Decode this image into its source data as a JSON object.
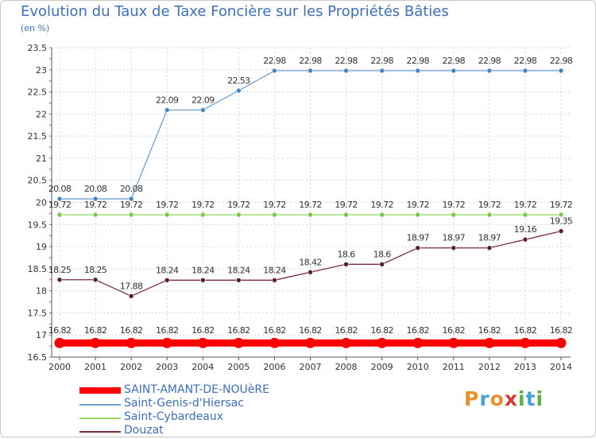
{
  "header": {
    "title": "Evolution du Taux de Taxe Foncière sur les Propriétés Bâties",
    "unit": "(en %)"
  },
  "logo": {
    "chars": [
      "P",
      "r",
      "o",
      "x",
      "i",
      "t",
      "i"
    ],
    "colors": [
      "#e8912a",
      "#4aa0d8",
      "#e8912a",
      "#d63b2f",
      "#5db041",
      "#4aa0d8",
      "#5db041"
    ]
  },
  "chart_data": {
    "type": "line",
    "title": "Evolution du Taux de Taxe Foncière sur les Propriétés Bâties",
    "ylabel": "(en %)",
    "x": [
      "2000",
      "2001",
      "2002",
      "2003",
      "2004",
      "2005",
      "2006",
      "2007",
      "2008",
      "2009",
      "2010",
      "2011",
      "2012",
      "2013",
      "2014"
    ],
    "ylim": [
      16.5,
      23.5
    ],
    "yticks": [
      "16.5",
      "17",
      "17.5",
      "18",
      "18.5",
      "19",
      "19.5",
      "20",
      "20.5",
      "21",
      "21.5",
      "22",
      "22.5",
      "23",
      "23.5"
    ],
    "grid": true,
    "legend_position": "bottom-left",
    "series": [
      {
        "name": "SAINT-AMANT-DE-NOUèRE",
        "color": "#ff0000",
        "marker_color": "#ff0000",
        "thick": true,
        "values": [
          16.82,
          16.82,
          16.82,
          16.82,
          16.82,
          16.82,
          16.82,
          16.82,
          16.82,
          16.82,
          16.82,
          16.82,
          16.82,
          16.82,
          16.82
        ],
        "labels": [
          "16.82",
          "16.82",
          "16.82",
          "16.82",
          "16.82",
          "16.82",
          "16.82",
          "16.82",
          "16.82",
          "16.82",
          "16.82",
          "16.82",
          "16.82",
          "16.82",
          "16.82"
        ]
      },
      {
        "name": "Saint-Genis-d'Hiersac",
        "color": "#6fa0d0",
        "marker_color": "#3e86c8",
        "thick": false,
        "values": [
          20.08,
          20.08,
          20.08,
          22.09,
          22.09,
          22.53,
          22.98,
          22.98,
          22.98,
          22.98,
          22.98,
          22.98,
          22.98,
          22.98,
          22.98
        ],
        "labels": [
          "20.08",
          "20.08",
          "20.08",
          "22.09",
          "22.09",
          "22.53",
          "22.98",
          "22.98",
          "22.98",
          "22.98",
          "22.98",
          "22.98",
          "22.98",
          "22.98",
          "22.98"
        ]
      },
      {
        "name": "Saint-Cybardeaux",
        "color": "#9ad86a",
        "marker_color": "#7cc54a",
        "thick": false,
        "values": [
          19.72,
          19.72,
          19.72,
          19.72,
          19.72,
          19.72,
          19.72,
          19.72,
          19.72,
          19.72,
          19.72,
          19.72,
          19.72,
          19.72,
          19.72
        ],
        "labels": [
          "19.72",
          "19.72",
          "19.72",
          "19.72",
          "19.72",
          "19.72",
          "19.72",
          "19.72",
          "19.72",
          "19.72",
          "19.72",
          "19.72",
          "19.72",
          "19.72",
          "19.72"
        ]
      },
      {
        "name": "Douzat",
        "color": "#7a2e35",
        "marker_color": "#5c1f26",
        "thick": false,
        "values": [
          18.25,
          18.25,
          17.88,
          18.24,
          18.24,
          18.24,
          18.24,
          18.42,
          18.6,
          18.6,
          18.97,
          18.97,
          18.97,
          19.16,
          19.35
        ],
        "labels": [
          "18.25",
          "18.25",
          "17.88",
          "18.24",
          "18.24",
          "18.24",
          "18.24",
          "18.42",
          "18.6",
          "18.6",
          "18.97",
          "18.97",
          "18.97",
          "19.16",
          "19.35"
        ]
      }
    ]
  }
}
